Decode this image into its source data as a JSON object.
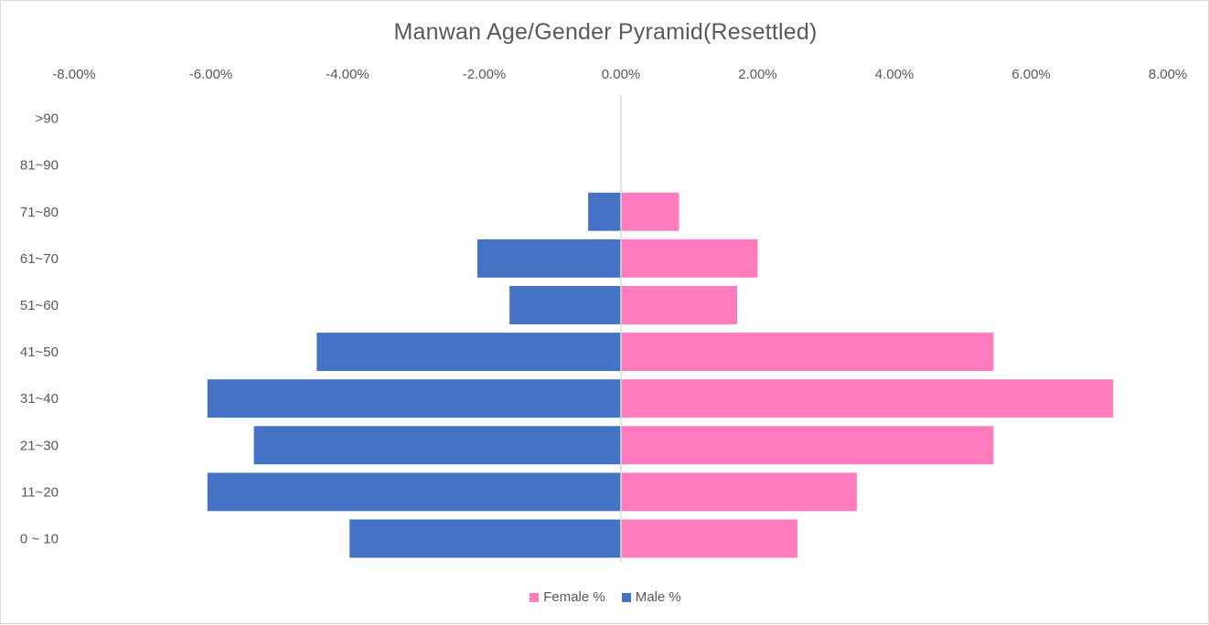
{
  "chart_data": {
    "type": "bar",
    "orientation": "horizontal",
    "title": "Manwan Age/Gender Pyramid(Resettled)",
    "xlabel": "",
    "ylabel": "",
    "xlim": [
      -8,
      8
    ],
    "x_ticks": [
      "-8.00%",
      "-6.00%",
      "-4.00%",
      "-2.00%",
      "0.00%",
      "2.00%",
      "4.00%",
      "6.00%",
      "8.00%"
    ],
    "x_tick_values": [
      -8,
      -6,
      -4,
      -2,
      0,
      2,
      4,
      6,
      8
    ],
    "x_axis_position": "top",
    "categories": [
      ">90",
      "81~90",
      "71~80",
      "61~70",
      "51~60",
      "41~50",
      "31~40",
      "21~30",
      "11~20",
      "0 ~ 10"
    ],
    "series": [
      {
        "name": "Female %",
        "color": "#FF7BBE",
        "values": [
          0,
          0,
          0.85,
          2.0,
          1.7,
          5.45,
          7.2,
          5.45,
          3.45,
          2.58
        ]
      },
      {
        "name": "Male %",
        "color": "#4472C4",
        "values": [
          0,
          0,
          -0.48,
          -2.1,
          -1.63,
          -4.45,
          -6.05,
          -5.37,
          -6.05,
          -3.97
        ]
      }
    ],
    "grid": false,
    "legend_position": "bottom"
  },
  "legend": [
    {
      "label": "Female %",
      "color": "#FF7BBE"
    },
    {
      "label": "Male %",
      "color": "#4472C4"
    }
  ]
}
